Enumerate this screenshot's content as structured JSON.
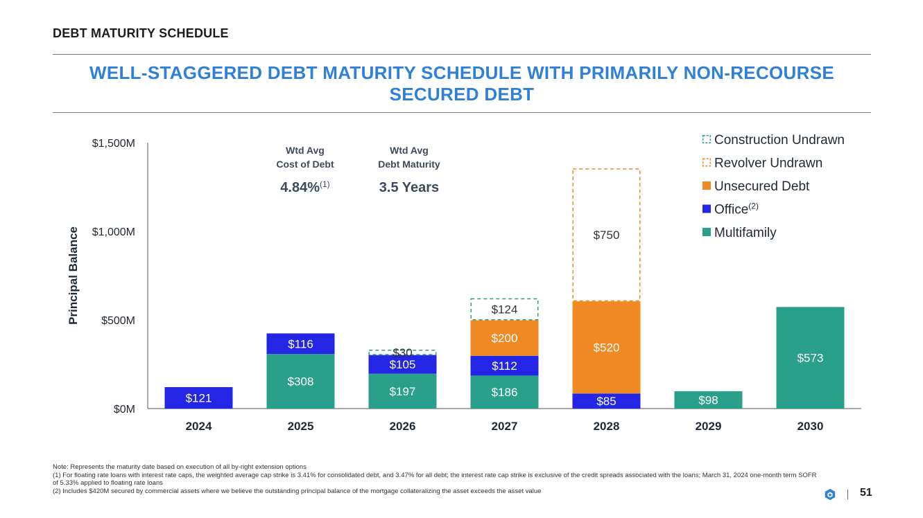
{
  "header": {
    "section_title": "DEBT MATURITY SCHEDULE",
    "headline_line1": "WELL-STAGGERED DEBT MATURITY SCHEDULE WITH PRIMARILY NON-RECOURSE",
    "headline_line2": "SECURED DEBT"
  },
  "colors": {
    "headline": "#2f80d6",
    "multifamily": "#2aa08a",
    "office": "#2525e6",
    "unsecured": "#f08a24",
    "revolver_border": "#f08a24",
    "construction_border": "#2aa08a",
    "axis_text": "#1f2933",
    "callout_text": "#3d4a5c"
  },
  "callouts": [
    {
      "label_line1": "Wtd Avg",
      "label_line2": "Cost of Debt",
      "value": "4.84%",
      "superscript": "(1)"
    },
    {
      "label_line1": "Wtd Avg",
      "label_line2": "Debt Maturity",
      "value": "3.5 Years",
      "superscript": ""
    }
  ],
  "chart_data": {
    "type": "bar",
    "stacked": true,
    "title": "",
    "ylabel": "Principal Balance",
    "xlabel": "",
    "ylim": [
      0,
      1500
    ],
    "yticks": [
      0,
      500,
      1000,
      1500
    ],
    "ytick_labels": [
      "$0M",
      "$500M",
      "$1,000M",
      "$1,500M"
    ],
    "categories": [
      "2024",
      "2025",
      "2026",
      "2027",
      "2028",
      "2029",
      "2030"
    ],
    "series": [
      {
        "name": "Multifamily",
        "key": "multifamily",
        "style": "solid",
        "values": [
          0,
          308,
          197,
          186,
          0,
          98,
          573
        ],
        "labels": [
          "",
          "$308",
          "$197",
          "$186",
          "",
          "$98",
          "$573"
        ]
      },
      {
        "name": "Office",
        "superscript": "(2)",
        "key": "office",
        "style": "solid",
        "values": [
          121,
          116,
          105,
          112,
          85,
          0,
          0
        ],
        "labels": [
          "$121",
          "$116",
          "$105",
          "$112",
          "$85",
          "",
          ""
        ]
      },
      {
        "name": "Unsecured Debt",
        "key": "unsecured",
        "style": "solid",
        "values": [
          0,
          0,
          0,
          200,
          520,
          0,
          0
        ],
        "labels": [
          "",
          "",
          "",
          "$200",
          "$520",
          "",
          ""
        ]
      },
      {
        "name": "Revolver Undrawn",
        "key": "revolver",
        "style": "dashed",
        "values": [
          0,
          0,
          0,
          0,
          750,
          0,
          0
        ],
        "labels": [
          "",
          "",
          "",
          "",
          "$750",
          "",
          ""
        ]
      },
      {
        "name": "Construction Undrawn",
        "key": "construction",
        "style": "dashed",
        "values": [
          0,
          0,
          30,
          124,
          0,
          0,
          0
        ],
        "labels": [
          "",
          "",
          "$30",
          "$124",
          "",
          "",
          ""
        ]
      }
    ],
    "legend_order": [
      "construction",
      "revolver",
      "unsecured",
      "office",
      "multifamily"
    ],
    "legend_position": "top-right"
  },
  "notes": {
    "line1": "Note: Represents the maturity date based on execution of all by-right extension options",
    "line2": "(1) For floating rate loans with interest rate caps, the weighted average cap strike is 3.41% for consolidated debt, and 3.47% for all debt; the interest rate cap strike is exclusive of the credit spreads associated with the loans; March 31, 2024 one-month term SOFR of 5.33% applied to floating rate loans",
    "line3": "(2) Includes $420M secured by commercial assets where we believe the outstanding principal balance of the mortgage collateralizing the asset exceeds the asset value"
  },
  "footer": {
    "icon": "logo-hexagon-icon",
    "page_number": "51"
  }
}
